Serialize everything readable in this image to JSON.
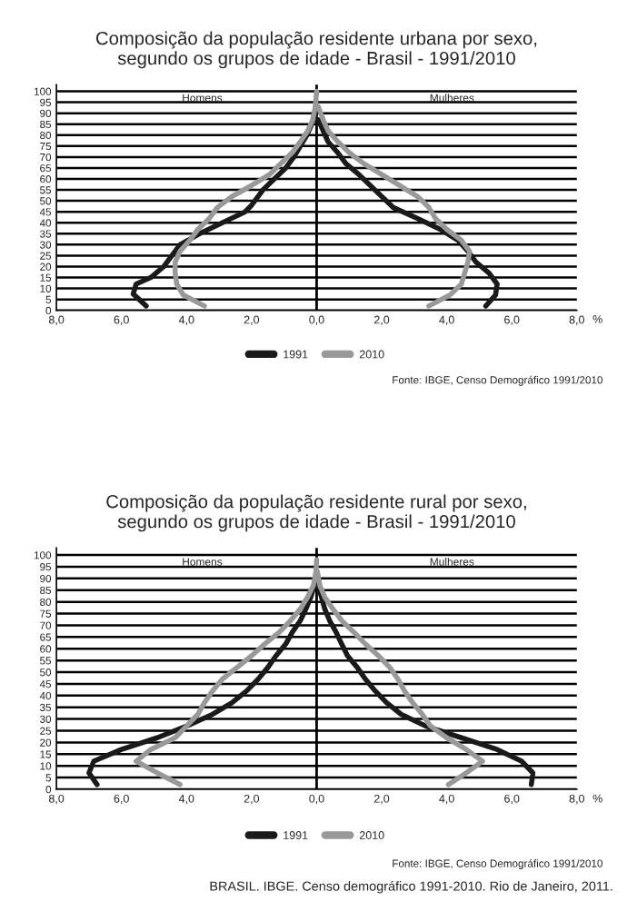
{
  "chart_data": [
    {
      "type": "line",
      "title": "Composição da população residente urbana por sexo,\nsegundo os grupos de idade - Brasil - 1991/2010",
      "xlabel": "%",
      "annotations": [
        "Homens",
        "Mulheres",
        "Fonte: IBGE, Censo Demográfico 1991/2010"
      ],
      "xlim": [
        -8,
        8
      ],
      "ylim": [
        0,
        103
      ],
      "xticks": [
        {
          "value": -8,
          "label": "8,0"
        },
        {
          "value": -6,
          "label": "6,0"
        },
        {
          "value": -4,
          "label": "4,0"
        },
        {
          "value": -2,
          "label": "2,0"
        },
        {
          "value": 0,
          "label": "0,0"
        },
        {
          "value": 2,
          "label": "2,0"
        },
        {
          "value": 4,
          "label": "4,0"
        },
        {
          "value": 6,
          "label": "6,0"
        },
        {
          "value": 8,
          "label": "8,0"
        }
      ],
      "yticks": [
        0,
        5,
        10,
        15,
        20,
        25,
        30,
        35,
        40,
        45,
        50,
        55,
        60,
        65,
        70,
        75,
        80,
        85,
        90,
        95,
        100
      ],
      "grid": "y",
      "legend": "bottom",
      "marker": "none",
      "line_style": "solid",
      "ref_lines": [
        {
          "axis": "x",
          "value": 0,
          "color": "#000000"
        }
      ],
      "series": [
        {
          "name": "1991",
          "color": "#1a1a1a",
          "x": [
            -5.24,
            -5.64,
            -5.55,
            -5.1,
            -4.7,
            -4.45,
            -4.2,
            -3.6,
            -2.9,
            -2.2,
            -2.0,
            -1.65,
            -1.3,
            -0.95,
            -0.7,
            -0.5,
            -0.3,
            -0.15,
            -0.04,
            null,
            5.2,
            5.5,
            5.55,
            5.3,
            4.9,
            4.65,
            4.35,
            3.8,
            3.1,
            2.35,
            2.0,
            1.65,
            1.3,
            0.9,
            0.65,
            0.35,
            0.2,
            0.05
          ],
          "values": [
            2,
            7.5,
            12,
            15,
            20,
            25,
            30,
            35,
            40,
            45,
            48,
            55,
            60,
            65,
            70,
            75,
            80,
            85,
            90,
            null,
            2,
            7,
            12,
            17,
            22,
            27,
            32,
            37,
            42,
            47,
            52,
            57,
            62,
            67,
            72,
            77,
            82,
            87
          ]
        },
        {
          "name": "2010",
          "color": "#999999",
          "x": [
            -3.45,
            -4.1,
            -4.3,
            -4.35,
            -4.35,
            -4.2,
            -3.9,
            -3.65,
            -3.3,
            -3.05,
            -2.6,
            -2.0,
            -1.45,
            -1.1,
            -0.75,
            -0.5,
            -0.27,
            -0.12,
            -0.04,
            0,
            null,
            3.45,
            4.1,
            4.45,
            4.55,
            4.65,
            4.7,
            4.45,
            4.0,
            3.65,
            3.45,
            3.1,
            2.55,
            2.0,
            1.45,
            1.0,
            0.65,
            0.35,
            0.2,
            0.05
          ],
          "values": [
            2,
            7,
            12,
            17,
            22,
            27,
            32,
            37,
            42,
            47,
            52,
            57,
            62,
            67,
            72,
            77,
            82,
            87,
            93,
            100,
            null,
            2,
            7,
            12,
            17,
            22,
            27,
            32,
            37,
            42,
            47,
            52,
            57,
            62,
            67,
            72,
            77,
            82,
            87,
            93
          ]
        }
      ]
    },
    {
      "type": "line",
      "title": "Composição da população residente rural por sexo,\nsegundo os grupos de idade - Brasil - 1991/2010",
      "xlabel": "%",
      "annotations": [
        "Homens",
        "Mulheres",
        "Fonte: IBGE, Censo Demográfico 1991/2010",
        "BRASIL. IBGE. Censo demográfico 1991-2010. Rio de Janeiro, 2011."
      ],
      "xlim": [
        -8,
        8
      ],
      "ylim": [
        0,
        103
      ],
      "xticks": [
        {
          "value": -8,
          "label": "8,0"
        },
        {
          "value": -6,
          "label": "6,0"
        },
        {
          "value": -4,
          "label": "4,0"
        },
        {
          "value": -2,
          "label": "2,0"
        },
        {
          "value": 0,
          "label": "0,0"
        },
        {
          "value": 2,
          "label": "2,0"
        },
        {
          "value": 4,
          "label": "4,0"
        },
        {
          "value": 6,
          "label": "6,0"
        },
        {
          "value": 8,
          "label": "8,0"
        }
      ],
      "yticks": [
        0,
        5,
        10,
        15,
        20,
        25,
        30,
        35,
        40,
        45,
        50,
        55,
        60,
        65,
        70,
        75,
        80,
        85,
        90,
        95,
        100
      ],
      "grid": "y",
      "legend": "bottom",
      "marker": "none",
      "line_style": "solid",
      "ref_lines": [
        {
          "axis": "x",
          "value": 0,
          "color": "#000000"
        }
      ],
      "series": [
        {
          "name": "1991",
          "color": "#1a1a1a",
          "x": [
            -6.75,
            -7.0,
            -6.85,
            -6.0,
            -4.9,
            -4.0,
            -3.2,
            -2.6,
            -2.15,
            -1.8,
            -1.5,
            -1.25,
            -0.95,
            -0.75,
            -0.5,
            -0.33,
            -0.18,
            -0.07,
            0,
            null,
            6.6,
            6.65,
            6.3,
            5.55,
            4.45,
            3.35,
            2.6,
            2.15,
            1.8,
            1.5,
            1.25,
            0.95,
            0.77,
            0.6,
            0.4,
            0.25,
            0.15,
            0.04
          ],
          "values": [
            2,
            7,
            12,
            17,
            22,
            27,
            32,
            37,
            42,
            47,
            52,
            57,
            62,
            67,
            72,
            77,
            82,
            87,
            92,
            null,
            2,
            7,
            12,
            17,
            22,
            27,
            32,
            37,
            42,
            47,
            52,
            57,
            62,
            67,
            72,
            77,
            82,
            87
          ]
        },
        {
          "name": "2010",
          "color": "#999999",
          "x": [
            -4.2,
            -4.9,
            -5.55,
            -5.1,
            -4.35,
            -4.0,
            -3.65,
            -3.45,
            -3.2,
            -2.9,
            -2.45,
            -2.0,
            -1.6,
            -1.15,
            -0.8,
            -0.5,
            -0.28,
            -0.1,
            -0.02,
            0,
            null,
            4.05,
            4.6,
            5.1,
            4.6,
            4.0,
            3.5,
            3.25,
            2.95,
            2.7,
            2.5,
            2.25,
            1.9,
            1.5,
            1.15,
            0.77,
            0.5,
            0.25,
            0.1,
            0.02
          ],
          "values": [
            2,
            7,
            12,
            17,
            22,
            27,
            32,
            37,
            42,
            47,
            52,
            57,
            62,
            67,
            72,
            77,
            82,
            87,
            93,
            98,
            null,
            2,
            7,
            12,
            17,
            22,
            27,
            32,
            37,
            42,
            47,
            52,
            57,
            62,
            67,
            72,
            77,
            82,
            87,
            93
          ]
        }
      ]
    }
  ]
}
